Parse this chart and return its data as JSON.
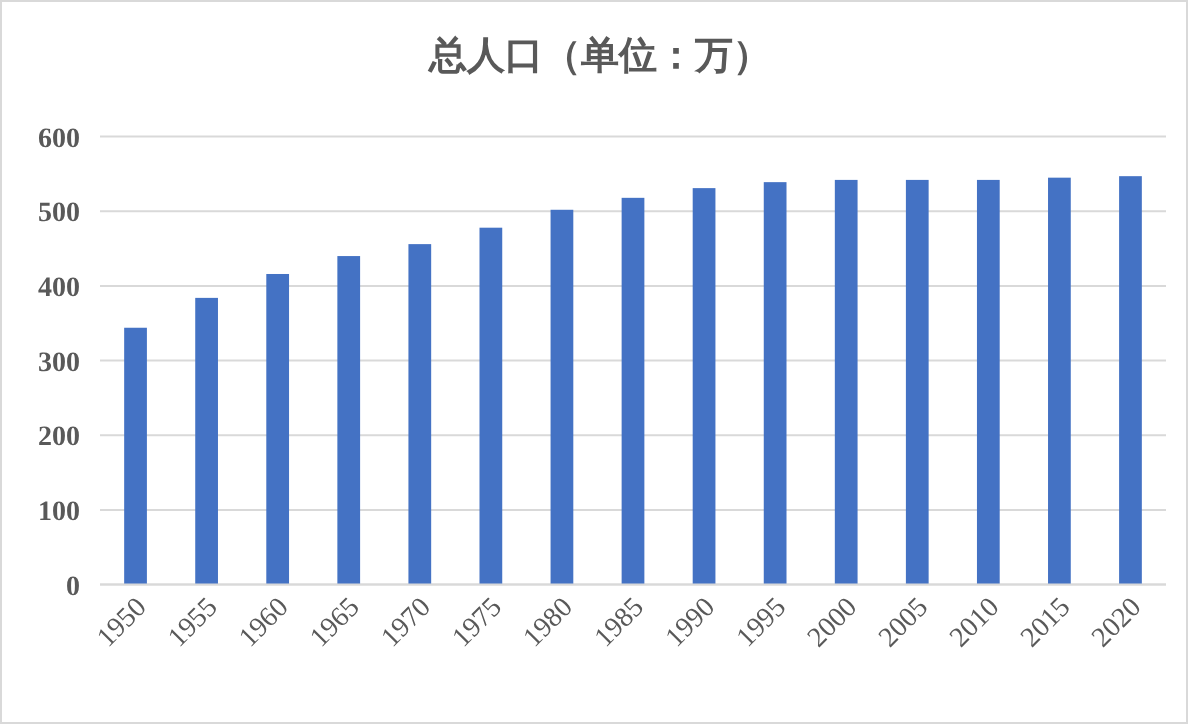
{
  "chart_data": {
    "type": "bar",
    "title": "总人口（单位：万）",
    "categories": [
      "1950",
      "1955",
      "1960",
      "1965",
      "1970",
      "1975",
      "1980",
      "1985",
      "1990",
      "1995",
      "2000",
      "2005",
      "2010",
      "2015",
      "2020"
    ],
    "values": [
      344,
      384,
      416,
      440,
      456,
      478,
      502,
      518,
      531,
      539,
      542,
      542,
      542,
      545,
      547
    ],
    "color": "#4472c4",
    "ylim": [
      0,
      600
    ],
    "yticks": [
      0,
      100,
      200,
      300,
      400,
      500,
      600
    ],
    "grid": "y"
  }
}
